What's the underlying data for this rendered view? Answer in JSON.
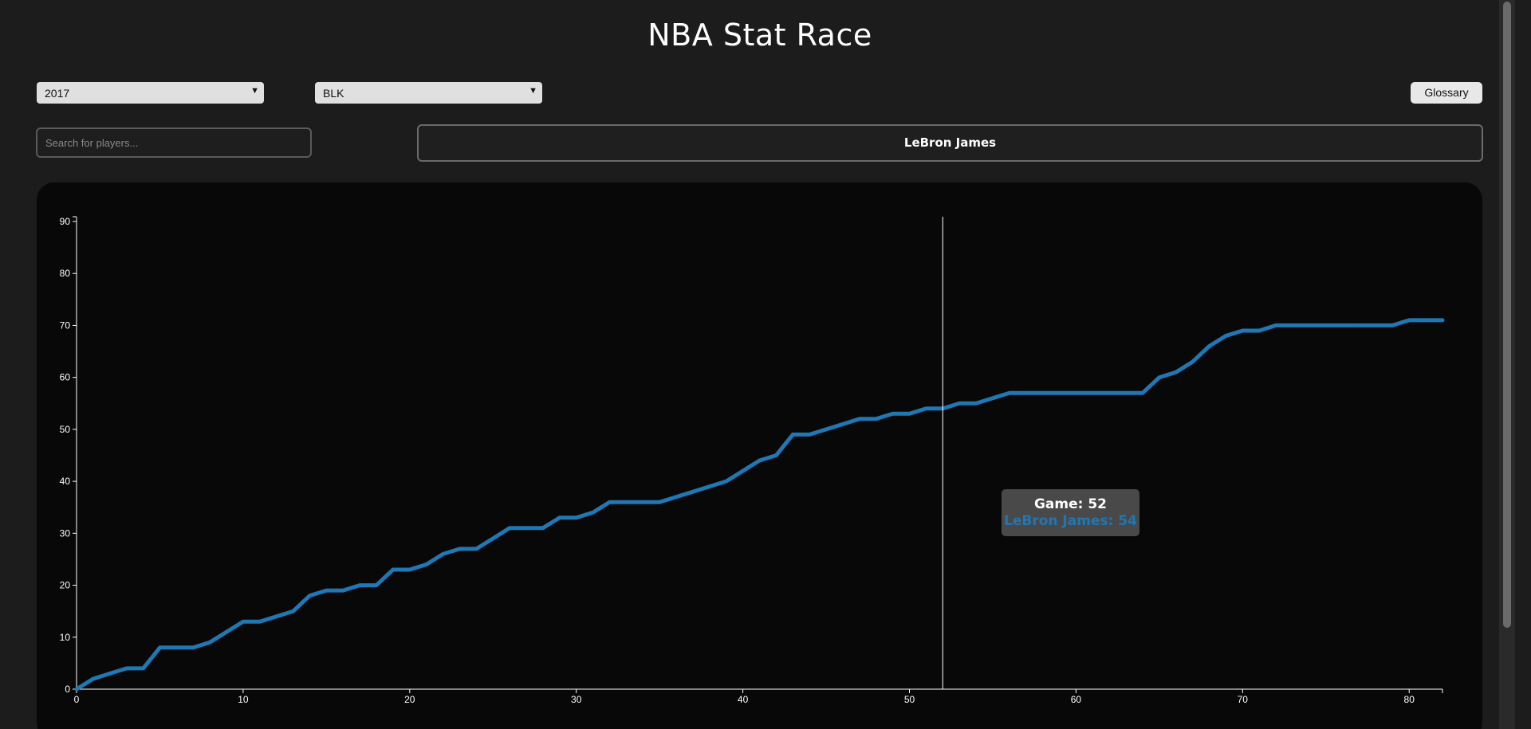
{
  "page": {
    "title": "NBA Stat Race"
  },
  "controls": {
    "season_selected": "2017",
    "stat_selected": "BLK",
    "glossary_label": "Glossary",
    "search_placeholder": "Search for players...",
    "search_value": ""
  },
  "selected_players": [
    "LeBron James"
  ],
  "tooltip": {
    "game_text": "Game: 52",
    "value_text": "LeBron James: 54"
  },
  "colors": {
    "series": "#1f77b4",
    "background": "#1c1c1c",
    "panel": "#080808"
  },
  "chart_data": {
    "type": "line",
    "title": "",
    "xlabel": "",
    "ylabel": "",
    "xlim": [
      0,
      82
    ],
    "ylim": [
      0,
      90
    ],
    "x_ticks": [
      0,
      10,
      20,
      30,
      40,
      50,
      60,
      70,
      80
    ],
    "y_ticks": [
      0,
      10,
      20,
      30,
      40,
      50,
      60,
      70,
      80,
      90
    ],
    "hover_game": 52,
    "series": [
      {
        "name": "LeBron James",
        "color": "#1f77b4",
        "x": [
          0,
          1,
          2,
          3,
          4,
          5,
          6,
          7,
          8,
          9,
          10,
          11,
          12,
          13,
          14,
          15,
          16,
          17,
          18,
          19,
          20,
          21,
          22,
          23,
          24,
          25,
          26,
          27,
          28,
          29,
          30,
          31,
          32,
          33,
          34,
          35,
          36,
          37,
          38,
          39,
          40,
          41,
          42,
          43,
          44,
          45,
          46,
          47,
          48,
          49,
          50,
          51,
          52,
          53,
          54,
          55,
          56,
          57,
          58,
          59,
          60,
          61,
          62,
          63,
          64,
          65,
          66,
          67,
          68,
          69,
          70,
          71,
          72,
          73,
          74,
          75,
          76,
          77,
          78,
          79,
          80,
          81,
          82
        ],
        "values": [
          0,
          2,
          3,
          4,
          4,
          8,
          8,
          8,
          9,
          11,
          13,
          13,
          14,
          15,
          18,
          19,
          19,
          20,
          20,
          23,
          23,
          24,
          26,
          27,
          27,
          29,
          31,
          31,
          31,
          33,
          33,
          34,
          36,
          36,
          36,
          36,
          37,
          38,
          39,
          40,
          42,
          44,
          45,
          49,
          49,
          50,
          51,
          52,
          52,
          53,
          53,
          54,
          54,
          55,
          55,
          56,
          57,
          57,
          57,
          57,
          57,
          57,
          57,
          57,
          57,
          60,
          61,
          63,
          66,
          68,
          69,
          69,
          70,
          70,
          70,
          70,
          70,
          70,
          70,
          70,
          71,
          71,
          71
        ]
      }
    ]
  }
}
